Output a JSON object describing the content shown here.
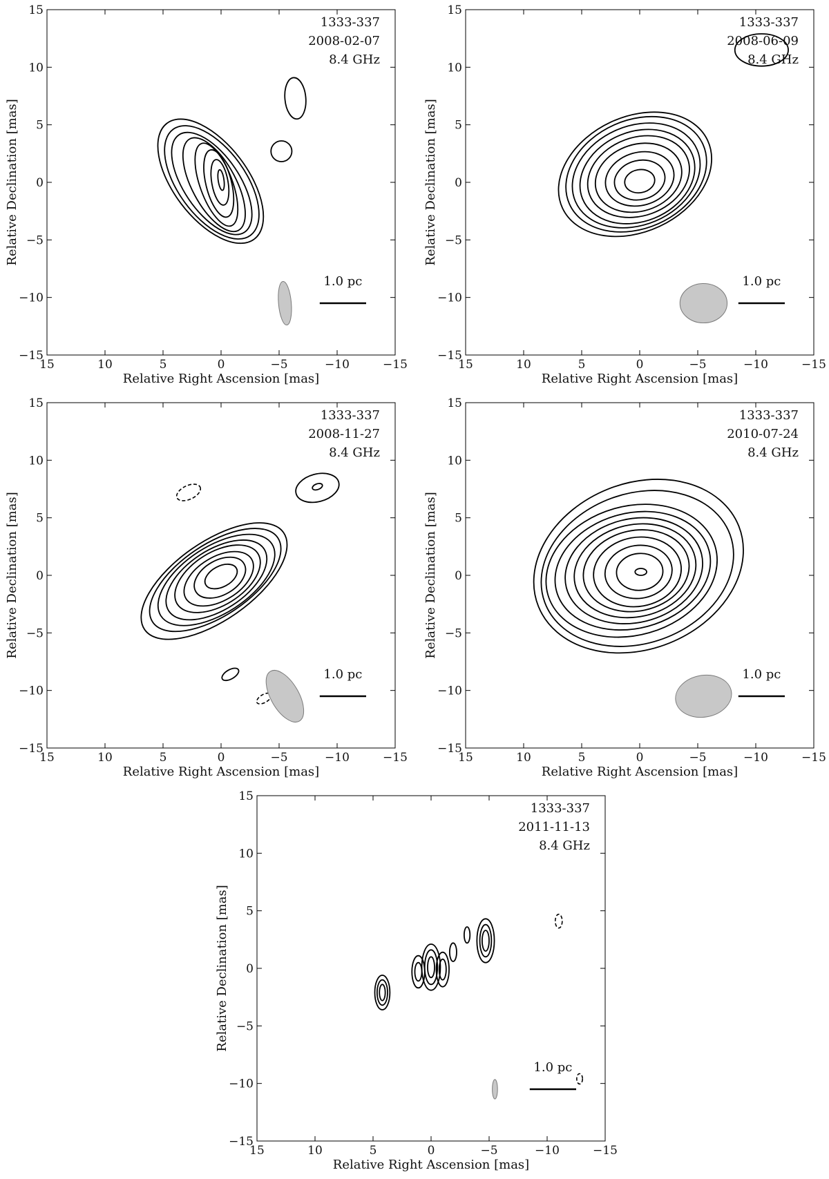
{
  "chart_data": [
    {
      "type": "contour",
      "source": "1333-337",
      "date": "2008-02-07",
      "frequency": "8.4 GHz",
      "xlabel": "Relative Right Ascension [mas]",
      "ylabel": "Relative Declination [mas]",
      "xlim": [
        15,
        -15
      ],
      "ylim": [
        -15,
        15
      ],
      "xticks": [
        15,
        10,
        5,
        0,
        -5,
        -10,
        -15
      ],
      "yticks": [
        -15,
        -10,
        -5,
        0,
        5,
        10,
        15
      ],
      "xtick_labels": [
        "15",
        "10",
        "5",
        "0",
        "−5",
        "−10",
        "−15"
      ],
      "ytick_labels": [
        "−15",
        "−10",
        "−5",
        "0",
        "5",
        "10",
        "15"
      ],
      "scale_bar": {
        "label": "1.0 pc",
        "x_from": -8.5,
        "x_to": -12.5,
        "y": -10.5
      },
      "beam": {
        "x": -5.5,
        "y": -10.5,
        "major": 3.8,
        "minor": 1.1,
        "angle_deg": -5
      },
      "contours": [
        {
          "cx": 0.0,
          "cy": 0.2,
          "rx": 0.25,
          "ry": 0.9,
          "angle": -8
        },
        {
          "cx": 0.1,
          "cy": 0.0,
          "rx": 0.7,
          "ry": 2.0,
          "angle": -10
        },
        {
          "cx": 0.2,
          "cy": -0.1,
          "rx": 1.1,
          "ry": 3.0,
          "angle": -14
        },
        {
          "cx": 0.4,
          "cy": -0.2,
          "rx": 1.4,
          "ry": 3.8,
          "angle": -20
        },
        {
          "cx": 0.6,
          "cy": -0.2,
          "rx": 1.9,
          "ry": 4.5,
          "angle": -28
        },
        {
          "cx": 0.8,
          "cy": -0.1,
          "rx": 2.4,
          "ry": 5.1,
          "angle": -34
        },
        {
          "cx": 0.8,
          "cy": 0.0,
          "rx": 2.9,
          "ry": 5.7,
          "angle": -36
        },
        {
          "cx": 0.9,
          "cy": 0.1,
          "rx": 3.2,
          "ry": 6.3,
          "angle": -37
        },
        {
          "cx": -6.4,
          "cy": 7.3,
          "rx": 0.9,
          "ry": 1.8,
          "angle": -5
        },
        {
          "cx": -5.2,
          "cy": 2.7,
          "rx": 0.9,
          "ry": 0.9,
          "angle": 0
        }
      ],
      "negative_contours": []
    },
    {
      "type": "contour",
      "source": "1333-337",
      "date": "2008-06-09",
      "frequency": "8.4 GHz",
      "xlabel": "Relative Right Ascension [mas]",
      "ylabel": "Relative Declination [mas]",
      "xlim": [
        15,
        -15
      ],
      "ylim": [
        -15,
        15
      ],
      "xticks": [
        15,
        10,
        5,
        0,
        -5,
        -10,
        -15
      ],
      "yticks": [
        -15,
        -10,
        -5,
        0,
        5,
        10,
        15
      ],
      "xtick_labels": [
        "15",
        "10",
        "5",
        "0",
        "−5",
        "−10",
        "−15"
      ],
      "ytick_labels": [
        "−15",
        "−10",
        "−5",
        "0",
        "5",
        "10",
        "15"
      ],
      "scale_bar": {
        "label": "1.0 pc",
        "x_from": -8.5,
        "x_to": -12.5,
        "y": -10.5
      },
      "beam": {
        "x": -5.5,
        "y": -10.5,
        "major": 4.1,
        "minor": 3.4,
        "angle_deg": 90
      },
      "contours": [
        {
          "cx": 0.0,
          "cy": 0.1,
          "rx": 1.3,
          "ry": 1.0,
          "angle": -10
        },
        {
          "cx": 0.0,
          "cy": 0.2,
          "rx": 2.2,
          "ry": 1.7,
          "angle": -14
        },
        {
          "cx": 0.0,
          "cy": 0.3,
          "rx": 3.0,
          "ry": 2.3,
          "angle": -16
        },
        {
          "cx": 0.1,
          "cy": 0.4,
          "rx": 3.8,
          "ry": 2.9,
          "angle": -18
        },
        {
          "cx": 0.1,
          "cy": 0.5,
          "rx": 4.5,
          "ry": 3.4,
          "angle": -20
        },
        {
          "cx": 0.2,
          "cy": 0.5,
          "rx": 5.1,
          "ry": 3.9,
          "angle": -22
        },
        {
          "cx": 0.3,
          "cy": 0.6,
          "rx": 5.7,
          "ry": 4.3,
          "angle": -23
        },
        {
          "cx": 0.3,
          "cy": 0.7,
          "rx": 6.3,
          "ry": 4.7,
          "angle": -24
        },
        {
          "cx": 0.4,
          "cy": 0.7,
          "rx": 6.9,
          "ry": 5.0,
          "angle": -25
        },
        {
          "cx": -10.5,
          "cy": 11.5,
          "rx": 2.3,
          "ry": 1.4,
          "angle": 0
        }
      ],
      "negative_contours": []
    },
    {
      "type": "contour",
      "source": "1333-337",
      "date": "2008-11-27",
      "frequency": "8.4 GHz",
      "xlabel": "Relative Right Ascension [mas]",
      "ylabel": "Relative Declination [mas]",
      "xlim": [
        15,
        -15
      ],
      "ylim": [
        -15,
        15
      ],
      "xticks": [
        15,
        10,
        5,
        0,
        -5,
        -10,
        -15
      ],
      "yticks": [
        -15,
        -10,
        -5,
        0,
        5,
        10,
        15
      ],
      "xtick_labels": [
        "15",
        "10",
        "5",
        "0",
        "−5",
        "−10",
        "−15"
      ],
      "ytick_labels": [
        "−15",
        "−10",
        "−5",
        "0",
        "5",
        "10",
        "15"
      ],
      "scale_bar": {
        "label": "1.0 pc",
        "x_from": -8.5,
        "x_to": -12.5,
        "y": -10.5
      },
      "beam": {
        "x": -5.5,
        "y": -10.5,
        "major": 5.0,
        "minor": 2.4,
        "angle_deg": -30
      },
      "contours": [
        {
          "cx": 0.0,
          "cy": -0.1,
          "rx": 1.5,
          "ry": 0.9,
          "angle": -28
        },
        {
          "cx": 0.1,
          "cy": -0.2,
          "rx": 2.4,
          "ry": 1.5,
          "angle": -30
        },
        {
          "cx": 0.2,
          "cy": -0.3,
          "rx": 3.3,
          "ry": 1.9,
          "angle": -31
        },
        {
          "cx": 0.3,
          "cy": -0.3,
          "rx": 4.1,
          "ry": 2.3,
          "angle": -32
        },
        {
          "cx": 0.4,
          "cy": -0.4,
          "rx": 4.9,
          "ry": 2.6,
          "angle": -33
        },
        {
          "cx": 0.4,
          "cy": -0.4,
          "rx": 5.7,
          "ry": 2.9,
          "angle": -33
        },
        {
          "cx": 0.5,
          "cy": -0.4,
          "rx": 6.5,
          "ry": 3.1,
          "angle": -34
        },
        {
          "cx": 0.6,
          "cy": -0.5,
          "rx": 7.3,
          "ry": 3.4,
          "angle": -35
        },
        {
          "cx": -8.3,
          "cy": 7.6,
          "rx": 1.9,
          "ry": 1.2,
          "angle": -15
        },
        {
          "cx": -8.3,
          "cy": 7.7,
          "rx": 0.45,
          "ry": 0.25,
          "angle": -20
        },
        {
          "cx": -0.8,
          "cy": -8.6,
          "rx": 0.8,
          "ry": 0.4,
          "angle": -30
        }
      ],
      "negative_contours": [
        {
          "cx": 2.8,
          "cy": 7.2,
          "rx": 1.1,
          "ry": 0.6,
          "angle": -25
        },
        {
          "cx": -3.7,
          "cy": -10.7,
          "rx": 0.7,
          "ry": 0.35,
          "angle": -30
        }
      ]
    },
    {
      "type": "contour",
      "source": "1333-337",
      "date": "2010-07-24",
      "frequency": "8.4 GHz",
      "xlabel": "Relative Right Ascension [mas]",
      "ylabel": "Relative Declination [mas]",
      "xlim": [
        15,
        -15
      ],
      "ylim": [
        -15,
        15
      ],
      "xticks": [
        15,
        10,
        5,
        0,
        -5,
        -10,
        -15
      ],
      "yticks": [
        -15,
        -10,
        -5,
        0,
        5,
        10,
        15
      ],
      "xtick_labels": [
        "15",
        "10",
        "5",
        "0",
        "−5",
        "−10",
        "−15"
      ],
      "ytick_labels": [
        "−15",
        "−10",
        "−5",
        "0",
        "5",
        "10",
        "15"
      ],
      "scale_bar": {
        "label": "1.0 pc",
        "x_from": -8.5,
        "x_to": -12.5,
        "y": -10.5
      },
      "beam": {
        "x": -5.5,
        "y": -10.5,
        "major": 4.9,
        "minor": 3.6,
        "angle_deg": 80
      },
      "contours": [
        {
          "cx": -0.1,
          "cy": 0.3,
          "rx": 0.5,
          "ry": 0.3,
          "angle": 0
        },
        {
          "cx": 0.0,
          "cy": 0.3,
          "rx": 2.0,
          "ry": 1.6,
          "angle": -5
        },
        {
          "cx": 0.1,
          "cy": 0.3,
          "rx": 2.9,
          "ry": 2.3,
          "angle": -8
        },
        {
          "cx": 0.2,
          "cy": 0.3,
          "rx": 3.8,
          "ry": 3.0,
          "angle": -10
        },
        {
          "cx": 0.3,
          "cy": 0.4,
          "rx": 4.6,
          "ry": 3.5,
          "angle": -12
        },
        {
          "cx": 0.4,
          "cy": 0.4,
          "rx": 5.3,
          "ry": 4.0,
          "angle": -13
        },
        {
          "cx": 0.5,
          "cy": 0.4,
          "rx": 6.0,
          "ry": 4.5,
          "angle": -14
        },
        {
          "cx": 0.6,
          "cy": 0.4,
          "rx": 6.8,
          "ry": 5.0,
          "angle": -15
        },
        {
          "cx": 0.7,
          "cy": 0.4,
          "rx": 7.5,
          "ry": 5.6,
          "angle": -16
        },
        {
          "cx": 0.2,
          "cy": 0.6,
          "rx": 8.5,
          "ry": 6.5,
          "angle": -20
        },
        {
          "cx": 0.1,
          "cy": 0.8,
          "rx": 9.3,
          "ry": 7.2,
          "angle": -22
        }
      ],
      "negative_contours": []
    },
    {
      "type": "contour",
      "source": "1333-337",
      "date": "2011-11-13",
      "frequency": "8.4 GHz",
      "xlabel": "Relative Right Ascension [mas]",
      "ylabel": "Relative Declination [mas]",
      "xlim": [
        15,
        -15
      ],
      "ylim": [
        -15,
        15
      ],
      "xticks": [
        15,
        10,
        5,
        0,
        -5,
        -10,
        -15
      ],
      "yticks": [
        -15,
        -10,
        -5,
        0,
        5,
        10,
        15
      ],
      "xtick_labels": [
        "15",
        "10",
        "5",
        "0",
        "−5",
        "−10",
        "−15"
      ],
      "ytick_labels": [
        "−15",
        "−10",
        "−5",
        "0",
        "5",
        "10",
        "15"
      ],
      "scale_bar": {
        "label": "1.0 pc",
        "x_from": -8.5,
        "x_to": -12.5,
        "y": -10.5
      },
      "beam": {
        "x": -5.5,
        "y": -10.5,
        "major": 1.7,
        "minor": 0.45,
        "angle_deg": 0
      },
      "contours": [
        {
          "cx": 0.0,
          "cy": 0.1,
          "rx": 0.3,
          "ry": 0.9,
          "angle": 0
        },
        {
          "cx": 0.0,
          "cy": 0.1,
          "rx": 0.55,
          "ry": 1.5,
          "angle": 0
        },
        {
          "cx": 0.0,
          "cy": 0.1,
          "rx": 0.8,
          "ry": 2.0,
          "angle": 0
        },
        {
          "cx": 1.1,
          "cy": -0.3,
          "rx": 0.3,
          "ry": 0.8,
          "angle": 0
        },
        {
          "cx": 1.1,
          "cy": -0.3,
          "rx": 0.55,
          "ry": 1.4,
          "angle": 0
        },
        {
          "cx": -1.0,
          "cy": -0.1,
          "rx": 0.3,
          "ry": 0.9,
          "angle": 0
        },
        {
          "cx": -1.0,
          "cy": -0.1,
          "rx": 0.55,
          "ry": 1.5,
          "angle": 0
        },
        {
          "cx": -1.9,
          "cy": 1.4,
          "rx": 0.3,
          "ry": 0.8,
          "angle": 0
        },
        {
          "cx": -3.1,
          "cy": 2.9,
          "rx": 0.25,
          "ry": 0.7,
          "angle": 0
        },
        {
          "cx": -4.7,
          "cy": 2.4,
          "rx": 0.3,
          "ry": 0.9,
          "angle": 0
        },
        {
          "cx": -4.7,
          "cy": 2.4,
          "rx": 0.5,
          "ry": 1.4,
          "angle": 0
        },
        {
          "cx": -4.7,
          "cy": 2.4,
          "rx": 0.75,
          "ry": 1.9,
          "angle": 0
        },
        {
          "cx": 4.2,
          "cy": -2.1,
          "rx": 0.25,
          "ry": 0.7,
          "angle": 0
        },
        {
          "cx": 4.2,
          "cy": -2.1,
          "rx": 0.45,
          "ry": 1.1,
          "angle": 0
        },
        {
          "cx": 4.2,
          "cy": -2.1,
          "rx": 0.65,
          "ry": 1.5,
          "angle": 0
        }
      ],
      "negative_contours": [
        {
          "cx": -11.0,
          "cy": 4.1,
          "rx": 0.3,
          "ry": 0.6,
          "angle": 0
        },
        {
          "cx": -12.8,
          "cy": -9.6,
          "rx": 0.25,
          "ry": 0.45,
          "angle": 0
        }
      ]
    }
  ]
}
